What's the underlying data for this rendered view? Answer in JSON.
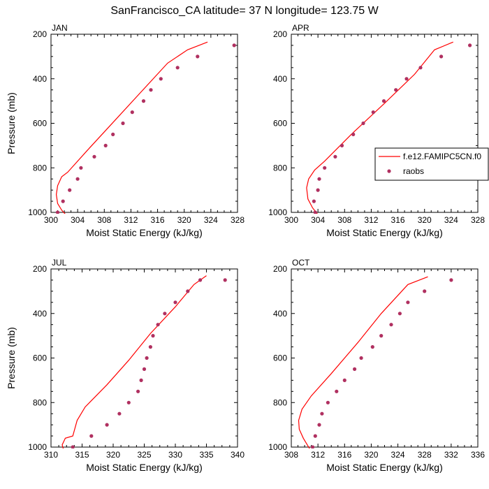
{
  "figure": {
    "title": "SanFrancisco_CA  latitude= 37 N longitude= 123.75 W"
  },
  "colors": {
    "model_line": "#ff0000",
    "obs_marker": "#b03060",
    "axis": "#000000"
  },
  "legend": {
    "items": [
      {
        "label": "f.e12.FAMIPC5CN.f0",
        "kind": "line"
      },
      {
        "label": "raobs",
        "kind": "marker"
      }
    ]
  },
  "chart_data": [
    {
      "type": "line",
      "panel_label": "JAN",
      "xlabel": "Moist Static Energy (kJ/kg)",
      "ylabel": "Pressure (mb)",
      "xlim": [
        300,
        328
      ],
      "ylim": [
        1000,
        200
      ],
      "y_reversed": true,
      "xticks": [
        300,
        304,
        308,
        312,
        316,
        320,
        324,
        328
      ],
      "yticks": [
        200,
        400,
        600,
        800,
        1000
      ],
      "series": [
        {
          "name": "f.e12.FAMIPC5CN.f0",
          "kind": "line",
          "x": [
            302.2,
            301.6,
            301.0,
            300.8,
            301.0,
            301.6,
            302.5,
            305.5,
            309.5,
            313.5,
            317.5,
            320.5,
            323.5
          ],
          "y": [
            1010,
            990,
            960,
            920,
            880,
            840,
            820,
            720,
            590,
            460,
            330,
            270,
            235
          ]
        },
        {
          "name": "raobs",
          "kind": "marker",
          "x": [
            301.0,
            301.8,
            302.8,
            304.0,
            304.5,
            306.5,
            308.2,
            309.3,
            310.8,
            312.2,
            313.9,
            315.0,
            316.5,
            319.0,
            322.0,
            327.5
          ],
          "y": [
            1000,
            950,
            900,
            850,
            800,
            750,
            700,
            650,
            600,
            550,
            500,
            450,
            400,
            350,
            300,
            250
          ]
        }
      ]
    },
    {
      "type": "line",
      "panel_label": "APR",
      "xlabel": "Moist Static Energy (kJ/kg)",
      "ylabel": "",
      "xlim": [
        300,
        328
      ],
      "ylim": [
        1000,
        200
      ],
      "y_reversed": true,
      "xticks": [
        300,
        304,
        308,
        312,
        316,
        320,
        324,
        328
      ],
      "yticks": [
        200,
        400,
        600,
        800,
        1000
      ],
      "series": [
        {
          "name": "f.e12.FAMIPC5CN.f0",
          "kind": "line",
          "x": [
            304.0,
            303.2,
            302.5,
            302.3,
            302.6,
            303.5,
            305.0,
            309.0,
            314.0,
            318.5,
            321.5,
            324.3
          ],
          "y": [
            1010,
            980,
            940,
            890,
            850,
            810,
            770,
            650,
            510,
            380,
            270,
            235
          ]
        },
        {
          "name": "raobs",
          "kind": "marker",
          "x": [
            303.6,
            303.4,
            304.0,
            304.2,
            305.0,
            306.6,
            307.6,
            309.3,
            310.8,
            312.3,
            313.9,
            315.7,
            317.3,
            319.4,
            322.5,
            326.8
          ],
          "y": [
            1000,
            950,
            900,
            850,
            800,
            750,
            700,
            650,
            600,
            550,
            500,
            450,
            400,
            350,
            300,
            250
          ]
        }
      ]
    },
    {
      "type": "line",
      "panel_label": "JUL",
      "xlabel": "Moist Static Energy (kJ/kg)",
      "ylabel": "Pressure (mb)",
      "xlim": [
        310,
        340
      ],
      "ylim": [
        1000,
        200
      ],
      "y_reversed": true,
      "xticks": [
        310,
        315,
        320,
        325,
        330,
        335,
        340
      ],
      "yticks": [
        200,
        400,
        600,
        800,
        1000
      ],
      "series": [
        {
          "name": "f.e12.FAMIPC5CN.f0",
          "kind": "line",
          "x": [
            312.0,
            311.8,
            312.3,
            313.5,
            314.2,
            315.5,
            319.0,
            322.5,
            326.0,
            330.0,
            333.0,
            335.0
          ],
          "y": [
            1010,
            990,
            960,
            950,
            880,
            820,
            720,
            610,
            490,
            370,
            270,
            230
          ]
        },
        {
          "name": "raobs",
          "kind": "marker",
          "x": [
            313.5,
            316.5,
            319.0,
            321.0,
            322.5,
            324.0,
            324.5,
            325.0,
            325.4,
            326.0,
            326.4,
            327.2,
            328.3,
            330.0,
            332.0,
            334.0,
            338.0
          ],
          "y": [
            1000,
            950,
            900,
            850,
            800,
            750,
            700,
            650,
            600,
            550,
            500,
            450,
            400,
            350,
            300,
            250,
            250
          ]
        }
      ]
    },
    {
      "type": "line",
      "panel_label": "OCT",
      "xlabel": "Moist Static Energy (kJ/kg)",
      "ylabel": "",
      "xlim": [
        308,
        336
      ],
      "ylim": [
        1000,
        200
      ],
      "y_reversed": true,
      "xticks": [
        308,
        312,
        316,
        320,
        324,
        328,
        332,
        336
      ],
      "yticks": [
        200,
        400,
        600,
        800,
        1000
      ],
      "series": [
        {
          "name": "f.e12.FAMIPC5CN.f0",
          "kind": "line",
          "x": [
            310.8,
            309.8,
            309.2,
            309.1,
            309.6,
            311.0,
            314.0,
            318.0,
            321.5,
            325.5,
            328.5
          ],
          "y": [
            1010,
            960,
            920,
            880,
            830,
            770,
            670,
            530,
            400,
            270,
            235
          ]
        },
        {
          "name": "raobs",
          "kind": "marker",
          "x": [
            311.2,
            311.6,
            312.2,
            312.6,
            313.5,
            314.8,
            316.0,
            317.5,
            318.5,
            320.2,
            321.5,
            323.0,
            324.3,
            325.5,
            328.0,
            332.0
          ],
          "y": [
            1000,
            950,
            900,
            850,
            800,
            750,
            700,
            650,
            600,
            550,
            500,
            450,
            400,
            350,
            300,
            250
          ]
        }
      ]
    }
  ]
}
